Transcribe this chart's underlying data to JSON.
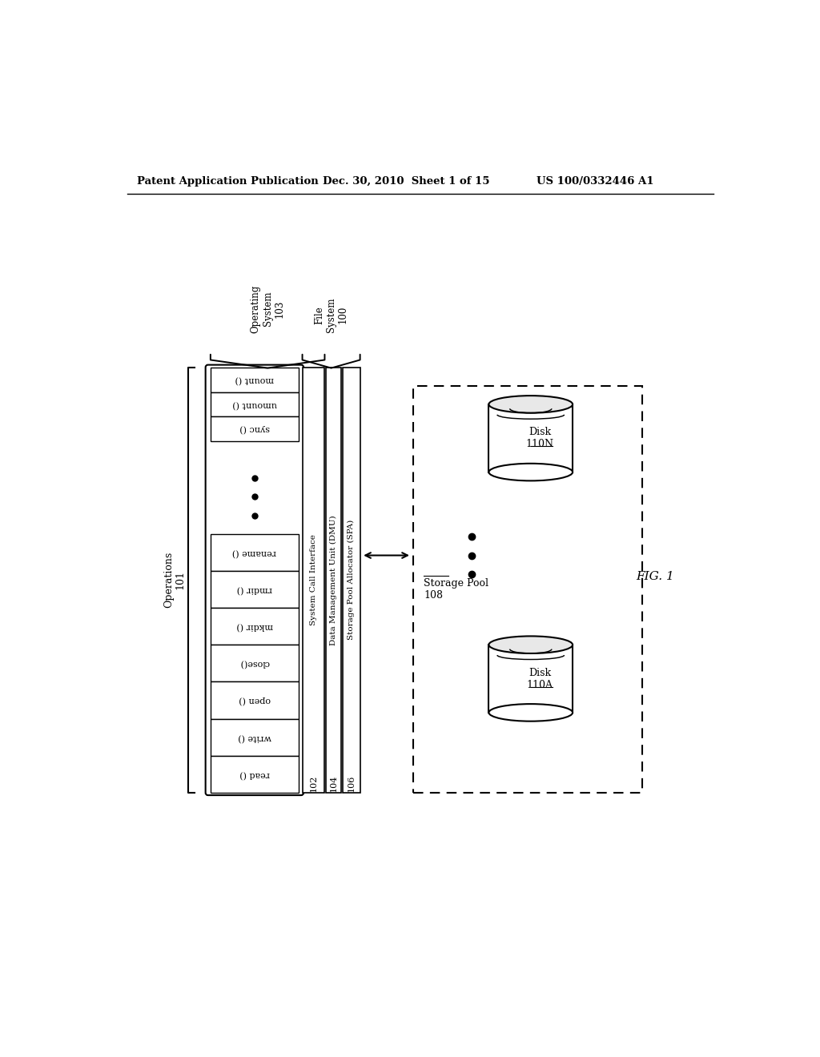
{
  "bg_color": "#ffffff",
  "header_left": "Patent Application Publication",
  "header_mid": "Dec. 30, 2010  Sheet 1 of 15",
  "header_right": "US 100/0332446 A1",
  "fig_label": "FIG. 1",
  "op_system_label": "Operating\nSystem\n103",
  "file_system_label": "File\nSystem\n100",
  "operations_label": "Operations\n101",
  "storage_pool_label": "Storage Pool\n108",
  "sys_call_label": "System Call Interface",
  "dmu_label": "Data Management Unit (DMU)",
  "spa_label": "Storage Pool Allocator (SPA)",
  "top_ops": [
    "mount ()",
    "umount ()",
    "sync ()"
  ],
  "bottom_ops": [
    "rename ()",
    "rmdir ()",
    "mkdir ()",
    "close()",
    "open ()",
    "write ()",
    "read ()"
  ],
  "col102_label": "102",
  "col104_label": "104",
  "col106_label": "106",
  "disk_top_label": "Disk\n110N",
  "disk_bot_label": "Disk\n110A"
}
